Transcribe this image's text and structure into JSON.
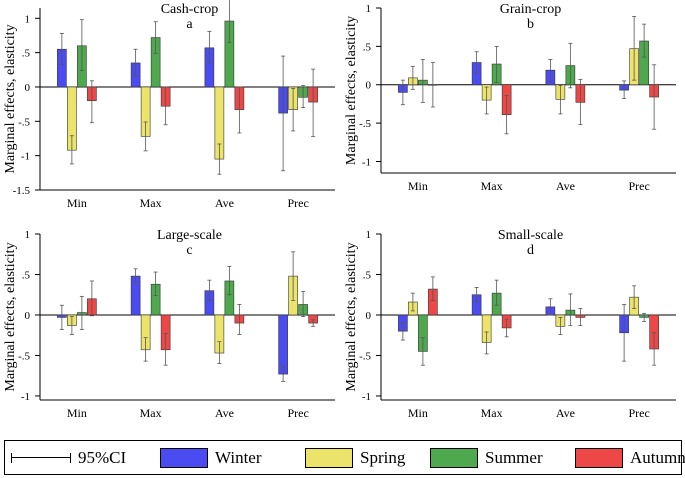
{
  "legend": {
    "ci_label": "95%CI",
    "seasons": [
      "Winter",
      "Spring",
      "Summer",
      "Autumn"
    ],
    "colors": [
      "#4b4bf2",
      "#ece46a",
      "#4ea84e",
      "#ee4747"
    ]
  },
  "chart_data": [
    {
      "type": "bar",
      "title": "Cash-crop",
      "panel_letter": "a",
      "ylabel": "Marginal effects, elasticity",
      "categories": [
        "Min",
        "Max",
        "Ave",
        "Prec"
      ],
      "ylim": [
        -1.5,
        1.15
      ],
      "yticks": [
        -1.5,
        -1,
        -0.5,
        0,
        0.5,
        1
      ],
      "ytick_labels": [
        "-1.5",
        "-1",
        "-.5",
        "0",
        ".5",
        "1"
      ],
      "series": [
        {
          "name": "Winter",
          "values": [
            0.55,
            0.35,
            0.57,
            -0.38
          ],
          "ci_low": [
            0.33,
            0.16,
            0.35,
            -1.22
          ],
          "ci_high": [
            0.78,
            0.55,
            0.81,
            0.45
          ]
        },
        {
          "name": "Spring",
          "values": [
            -0.92,
            -0.72,
            -1.05,
            -0.33
          ],
          "ci_low": [
            -1.12,
            -0.93,
            -1.27,
            -0.64
          ],
          "ci_high": [
            -0.71,
            -0.51,
            -0.83,
            -0.02
          ]
        },
        {
          "name": "Summer",
          "values": [
            0.6,
            0.72,
            0.96,
            -0.15
          ],
          "ci_low": [
            0.24,
            0.49,
            0.65,
            -0.3
          ],
          "ci_high": [
            0.98,
            0.95,
            1.28,
            0.02
          ]
        },
        {
          "name": "Autumn",
          "values": [
            -0.2,
            -0.28,
            -0.33,
            -0.22
          ],
          "ci_low": [
            -0.52,
            -0.55,
            -0.67,
            -0.72
          ],
          "ci_high": [
            0.09,
            0.0,
            0.0,
            0.26
          ]
        }
      ]
    },
    {
      "type": "bar",
      "title": "Grain-crop",
      "panel_letter": "b",
      "ylabel": "Marginal effects, elasticity",
      "categories": [
        "Min",
        "Max",
        "Ave",
        "Prec"
      ],
      "ylim": [
        -1.15,
        1.0
      ],
      "yticks": [
        -1,
        -0.5,
        0,
        0.5,
        1
      ],
      "ytick_labels": [
        "-1",
        "-.5",
        "0",
        ".5",
        "1"
      ],
      "series": [
        {
          "name": "Winter",
          "values": [
            -0.1,
            0.29,
            0.19,
            -0.07
          ],
          "ci_low": [
            -0.26,
            0.15,
            0.04,
            -0.18
          ],
          "ci_high": [
            0.06,
            0.43,
            0.33,
            0.05
          ]
        },
        {
          "name": "Spring",
          "values": [
            0.09,
            -0.2,
            -0.19,
            0.47
          ],
          "ci_low": [
            -0.06,
            -0.38,
            -0.38,
            0.06
          ],
          "ci_high": [
            0.24,
            -0.03,
            -0.01,
            0.89
          ]
        },
        {
          "name": "Summer",
          "values": [
            0.06,
            0.27,
            0.25,
            0.57
          ],
          "ci_low": [
            -0.23,
            0.03,
            -0.04,
            0.36
          ],
          "ci_high": [
            0.33,
            0.5,
            0.54,
            0.79
          ]
        },
        {
          "name": "Autumn",
          "values": [
            0.0,
            -0.39,
            -0.23,
            -0.16
          ],
          "ci_low": [
            -0.29,
            -0.64,
            -0.52,
            -0.58
          ],
          "ci_high": [
            0.29,
            -0.14,
            0.07,
            0.26
          ]
        }
      ]
    },
    {
      "type": "bar",
      "title": "Large-scale",
      "panel_letter": "c",
      "ylabel": "Marginal effects, elasticity",
      "categories": [
        "Min",
        "Max",
        "Ave",
        "Prec"
      ],
      "ylim": [
        -1.05,
        1.0
      ],
      "yticks": [
        -1,
        -0.5,
        0,
        0.5,
        1
      ],
      "ytick_labels": [
        "-1",
        "-.5",
        "0",
        ".5",
        "1"
      ],
      "series": [
        {
          "name": "Winter",
          "values": [
            -0.03,
            0.48,
            0.3,
            -0.73
          ],
          "ci_low": [
            -0.18,
            0.4,
            0.18,
            -0.82
          ],
          "ci_high": [
            0.12,
            0.57,
            0.43,
            -0.63
          ]
        },
        {
          "name": "Spring",
          "values": [
            -0.13,
            -0.43,
            -0.47,
            0.48
          ],
          "ci_low": [
            -0.24,
            -0.57,
            -0.6,
            0.18
          ],
          "ci_high": [
            -0.02,
            -0.28,
            -0.33,
            0.78
          ]
        },
        {
          "name": "Summer",
          "values": [
            0.03,
            0.38,
            0.42,
            0.13
          ],
          "ci_low": [
            -0.18,
            0.24,
            0.25,
            -0.02
          ],
          "ci_high": [
            0.23,
            0.53,
            0.6,
            0.29
          ]
        },
        {
          "name": "Autumn",
          "values": [
            0.2,
            -0.43,
            -0.1,
            -0.1
          ],
          "ci_low": [
            -0.01,
            -0.62,
            -0.24,
            -0.14
          ],
          "ci_high": [
            0.42,
            -0.23,
            0.13,
            -0.06
          ]
        }
      ]
    },
    {
      "type": "bar",
      "title": "Small-scale",
      "panel_letter": "d",
      "ylabel": "Marginal effects, elasticity",
      "categories": [
        "Min",
        "Max",
        "Ave",
        "Prec"
      ],
      "ylim": [
        -1.05,
        1.0
      ],
      "yticks": [
        -1,
        -0.5,
        0,
        0.5,
        1
      ],
      "ytick_labels": [
        "-1",
        "-.5",
        "0",
        ".5",
        "1"
      ],
      "series": [
        {
          "name": "Winter",
          "values": [
            -0.2,
            0.25,
            0.1,
            -0.22
          ],
          "ci_low": [
            -0.31,
            0.16,
            0.0,
            -0.57
          ],
          "ci_high": [
            -0.09,
            0.34,
            0.2,
            0.13
          ]
        },
        {
          "name": "Spring",
          "values": [
            0.16,
            -0.34,
            -0.14,
            0.22
          ],
          "ci_low": [
            0.05,
            -0.48,
            -0.24,
            0.08
          ],
          "ci_high": [
            0.27,
            -0.21,
            -0.03,
            0.36
          ]
        },
        {
          "name": "Summer",
          "values": [
            -0.45,
            0.27,
            0.06,
            -0.03
          ],
          "ci_low": [
            -0.62,
            0.12,
            -0.13,
            -0.08
          ],
          "ci_high": [
            -0.28,
            0.43,
            0.26,
            0.02
          ]
        },
        {
          "name": "Autumn",
          "values": [
            0.32,
            -0.16,
            -0.03,
            -0.42
          ],
          "ci_low": [
            0.18,
            -0.27,
            -0.13,
            -0.62
          ],
          "ci_high": [
            0.47,
            -0.05,
            0.08,
            -0.22
          ]
        }
      ]
    }
  ]
}
